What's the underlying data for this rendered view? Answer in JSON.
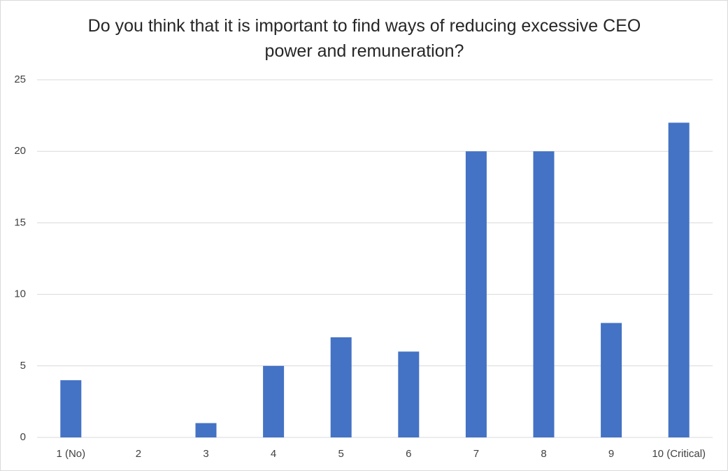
{
  "chart_data": {
    "type": "bar",
    "title": "Do you think that it is important to find ways of reducing excessive CEO power and remuneration?",
    "categories": [
      "1 (No)",
      "2",
      "3",
      "4",
      "5",
      "6",
      "7",
      "8",
      "9",
      "10 (Critical)"
    ],
    "values": [
      4,
      0,
      1,
      5,
      7,
      6,
      20,
      20,
      8,
      22
    ],
    "color": "#4472c4",
    "ylim": [
      0,
      25
    ],
    "yticks": [
      0,
      5,
      10,
      15,
      20,
      25
    ],
    "grid": true
  }
}
